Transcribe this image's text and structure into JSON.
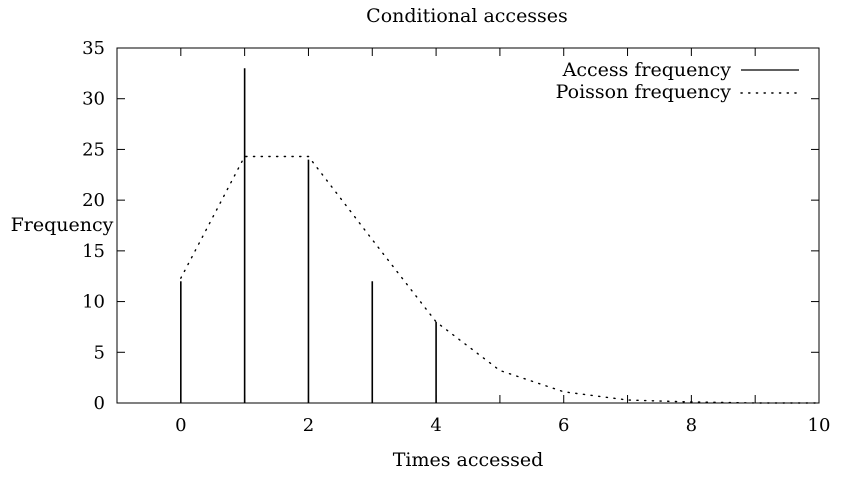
{
  "chart_data": {
    "type": "line",
    "title": "Conditional accesses",
    "xlabel": "Times accessed",
    "ylabel": "Frequency",
    "xlim": [
      -1,
      10
    ],
    "ylim": [
      0,
      35
    ],
    "xticks": [
      0,
      2,
      4,
      6,
      8,
      10
    ],
    "yticks": [
      0,
      5,
      10,
      15,
      20,
      25,
      30,
      35
    ],
    "grid": false,
    "legend_position": "top-right",
    "series": [
      {
        "name": "Access frequency",
        "style": "impulses",
        "color": "#000000",
        "x": [
          0,
          1,
          2,
          3,
          4
        ],
        "y": [
          12,
          33,
          24,
          12,
          8
        ]
      },
      {
        "name": "Poisson frequency",
        "style": "dotted",
        "color": "#000000",
        "x": [
          0,
          1,
          2,
          3,
          4,
          5,
          6,
          7,
          8,
          9,
          10
        ],
        "y": [
          12.3,
          24.3,
          24.3,
          16.1,
          8.0,
          3.2,
          1.1,
          0.3,
          0.1,
          0.0,
          0.0
        ]
      }
    ]
  }
}
